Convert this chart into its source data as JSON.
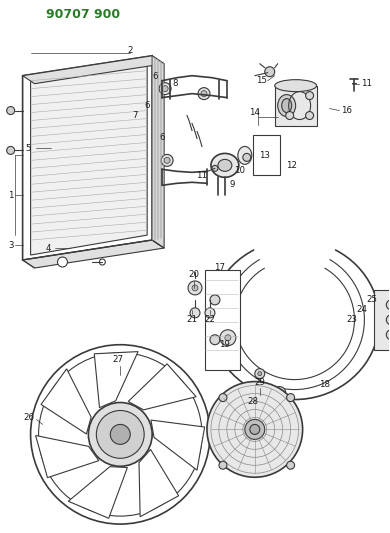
{
  "title": "90707 900",
  "bg_color": "#ffffff",
  "line_color": "#3a3a3a",
  "title_color": "#2a7a2a",
  "fig_width": 3.9,
  "fig_height": 5.33,
  "dpi": 100
}
